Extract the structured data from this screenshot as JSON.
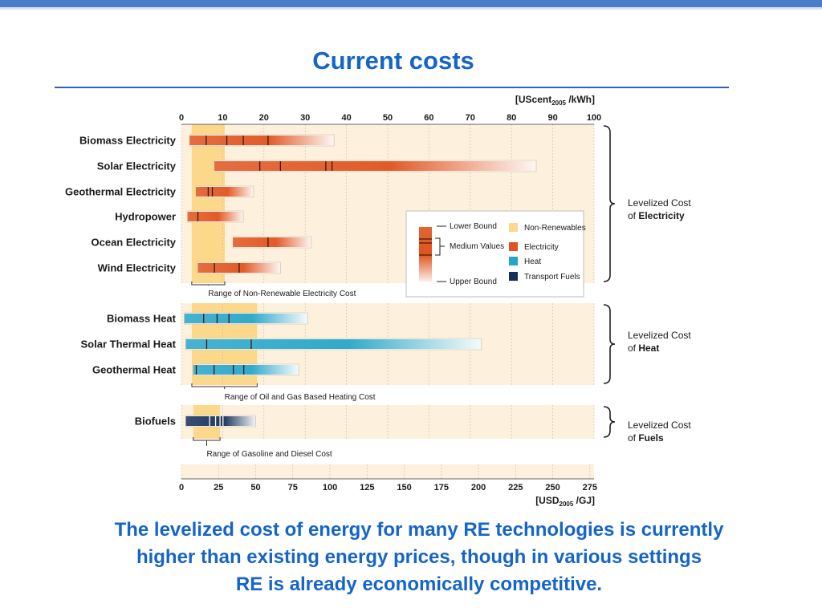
{
  "page": {
    "title": "Current costs",
    "caption_lines": [
      "The levelized cost of energy for many RE technologies is currently",
      "higher than existing energy prices, though in various settings",
      "RE is already economically competitive."
    ]
  },
  "chart_data": {
    "type": "bar",
    "top_axis": {
      "unit_main": "[UScent",
      "unit_sub": "2005",
      "unit_end": " /kWh]",
      "ticks": [
        0,
        10,
        20,
        30,
        40,
        50,
        60,
        70,
        80,
        90,
        100
      ],
      "range": [
        0,
        100
      ]
    },
    "bottom_axis": {
      "unit_main": "[USD",
      "unit_sub": "2005",
      "unit_end": " /GJ]",
      "ticks": [
        0,
        25,
        50,
        75,
        100,
        125,
        150,
        175,
        200,
        225,
        250,
        275
      ],
      "range": [
        0,
        277.8
      ]
    },
    "colors": {
      "electricity": "#e0531e",
      "heat": "#27a5c8",
      "fuels": "#15305a",
      "non_renewables": "#fbd88a",
      "panel": "#fdf1dd"
    },
    "groups": [
      {
        "id": "electricity",
        "label_line1": "Levelized Cost",
        "label_line2_prefix": "of ",
        "label_line2_bold": "Electricity",
        "color_key": "electricity",
        "axis": "top",
        "nonrenewable_range": [
          2.5,
          10.5
        ],
        "range_label": "Range of Non-Renewable Electricity Cost",
        "items": [
          {
            "name": "Biomass Electricity",
            "low": 2,
            "high": 37,
            "medians": [
              6,
              11,
              15,
              21
            ]
          },
          {
            "name": "Solar Electricity",
            "low": 8,
            "high": 86,
            "medians": [
              19,
              24,
              35,
              36.5
            ]
          },
          {
            "name": "Geothermal Electricity",
            "low": 3.5,
            "high": 17.5,
            "medians": [
              6.5,
              7.5
            ]
          },
          {
            "name": "Hydropower",
            "low": 1.5,
            "high": 15,
            "medians": [
              4
            ]
          },
          {
            "name": "Ocean Electricity",
            "low": 12.5,
            "high": 31.5,
            "medians": [
              21
            ]
          },
          {
            "name": "Wind Electricity",
            "low": 4,
            "high": 24,
            "medians": [
              8,
              14
            ]
          }
        ]
      },
      {
        "id": "heat",
        "label_line1": "Levelized Cost",
        "label_line2_prefix": "of ",
        "label_line2_bold": "Heat",
        "color_key": "heat",
        "axis": "bottom",
        "nonrenewable_range": [
          7,
          51
        ],
        "range_label": "Range of Oil and Gas Based Heating Cost",
        "items": [
          {
            "name": "Biomass Heat",
            "low": 2,
            "high": 85,
            "medians": [
              15,
              24,
              32
            ]
          },
          {
            "name": "Solar Thermal Heat",
            "low": 3,
            "high": 202,
            "medians": [
              17,
              47
            ]
          },
          {
            "name": "Geothermal Heat",
            "low": 8,
            "high": 79,
            "medians": [
              10,
              22,
              35,
              42
            ]
          }
        ]
      },
      {
        "id": "fuels",
        "label_line1": "Levelized Cost",
        "label_line2_prefix": "of ",
        "label_line2_bold": "Fuels",
        "color_key": "fuels",
        "axis": "bottom",
        "nonrenewable_range": [
          8,
          26
        ],
        "range_label": "Range of Gasoline and Diesel Cost",
        "items": [
          {
            "name": "Biofuels",
            "low": 3,
            "high": 50,
            "medians": [
              19,
              23,
              26,
              28
            ]
          }
        ]
      }
    ],
    "legend": {
      "lower_bound": "Lower Bound",
      "medium_values": "Medium Values",
      "upper_bound": "Upper Bound",
      "entries": [
        {
          "label": "Non-Renewables",
          "color": "#fbd88a"
        },
        {
          "label": "Electricity",
          "color": "#e0531e"
        },
        {
          "label": "Heat",
          "color": "#27a5c8"
        },
        {
          "label": "Transport Fuels",
          "color": "#15305a"
        }
      ]
    }
  }
}
